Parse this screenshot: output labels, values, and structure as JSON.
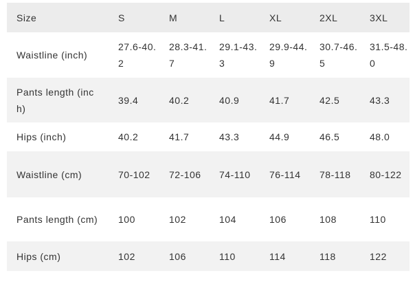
{
  "table": {
    "headers": [
      "Size",
      "S",
      "M",
      "L",
      "XL",
      "2XL",
      "3XL"
    ],
    "rows": [
      {
        "label": "Waistline (inch)",
        "values": [
          "27.6-40.2",
          "28.3-41.7",
          "29.1-43.3",
          "29.9-44.9",
          "30.7-46.5",
          "31.5-48.0"
        ]
      },
      {
        "label": "Pants length (inch)",
        "values": [
          "39.4",
          "40.2",
          "40.9",
          "41.7",
          "42.5",
          "43.3"
        ]
      },
      {
        "label": "Hips (inch)",
        "values": [
          "40.2",
          "41.7",
          "43.3",
          "44.9",
          "46.5",
          "48.0"
        ]
      },
      {
        "label": "Waistline (cm)",
        "values": [
          "70-102",
          "72-106",
          "74-110",
          "76-114",
          "78-118",
          "80-122"
        ]
      },
      {
        "label": "Pants length (cm)",
        "values": [
          "100",
          "102",
          "104",
          "106",
          "108",
          "110"
        ]
      },
      {
        "label": "Hips (cm)",
        "values": [
          "102",
          "106",
          "110",
          "114",
          "118",
          "122"
        ]
      }
    ]
  }
}
